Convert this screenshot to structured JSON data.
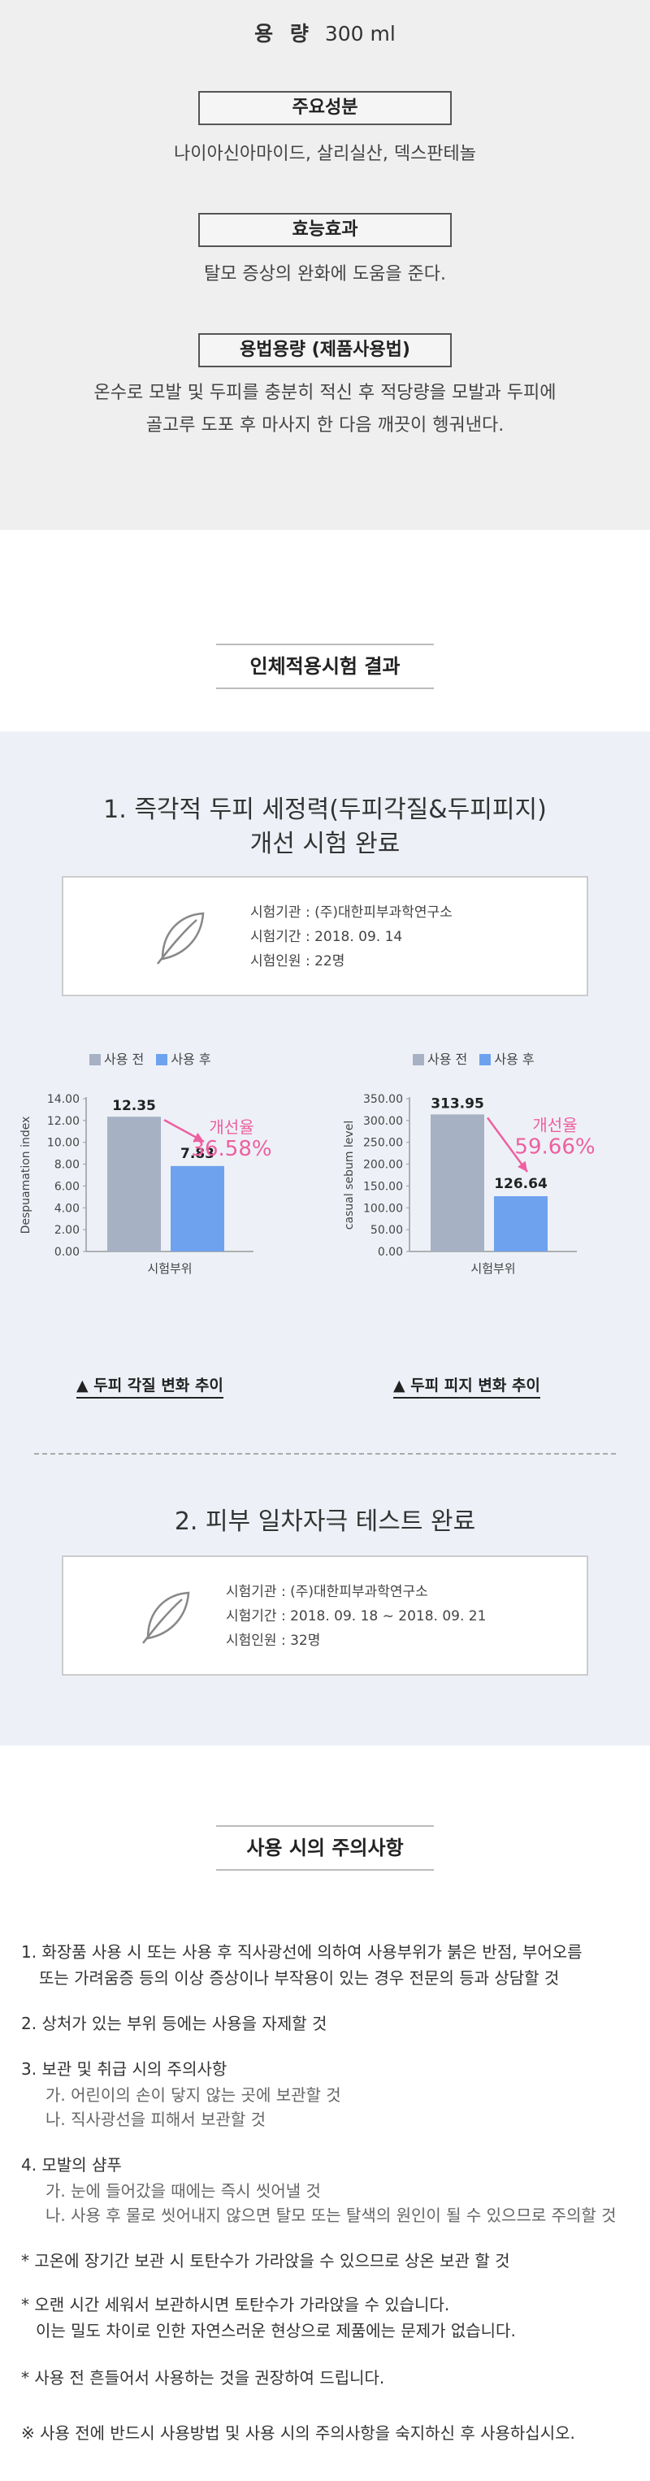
{
  "product": {
    "volume_key": "용 량",
    "volume_value": "300 ml",
    "ingredients_label": "주요성분",
    "ingredients": "나이아신아마이드, 살리실산, 덱스판테놀",
    "efficacy_label": "효능효과",
    "efficacy": "탈모 증상의 완화에 도움을 준다.",
    "usage_label": "용법용량 (제품사용법)",
    "usage_line1": "온수로 모발 및 두피를 충분히 적신 후 적당량을 모발과 두피에",
    "usage_line2": "골고루 도포 후 마사지 한 다음 깨끗이 헹궈낸다."
  },
  "tests": {
    "heading": "인체적용시험 결과",
    "test1": {
      "title_line1": "1. 즉각적 두피 세정력(두피각질&두피피지)",
      "title_line2": "개선 시험 완료",
      "org": "시험기관 : (주)대한피부과학연구소",
      "period": "시험기간 : 2018. 09. 14",
      "people": "시험인원 : 22명"
    },
    "test2": {
      "title": "2. 피부 일차자극 테스트 완료",
      "org": "시험기관 : (주)대한피부과학연구소",
      "period": "시험기간 : 2018. 09. 18 ~ 2018. 09. 21",
      "people": "시험인원 : 32명"
    },
    "legend_before": "사용 전",
    "legend_after": "사용 후",
    "improve_label": "개선율",
    "colors": {
      "before": "#a6b1c4",
      "after": "#6ea2ee",
      "improve": "#ee5fa0"
    }
  },
  "chart_data": [
    {
      "type": "bar",
      "categories": [
        "시험부위"
      ],
      "series": [
        {
          "name": "사용 전",
          "values": [
            12.35
          ]
        },
        {
          "name": "사용 후",
          "values": [
            7.83
          ]
        }
      ],
      "ylabel": "Despuamation index",
      "xlabel": "시험부위",
      "ylim": [
        0,
        14
      ],
      "yticks": [
        "0.00",
        "2.00",
        "4.00",
        "6.00",
        "8.00",
        "10.00",
        "12.00",
        "14.00"
      ],
      "data_labels": [
        "12.35",
        "7.83"
      ],
      "improvement": "36.58%",
      "caption": "▲ 두피 각질 변화 추이",
      "legend": "top"
    },
    {
      "type": "bar",
      "categories": [
        "시험부위"
      ],
      "series": [
        {
          "name": "사용 전",
          "values": [
            313.95
          ]
        },
        {
          "name": "사용 후",
          "values": [
            126.64
          ]
        }
      ],
      "ylabel": "casual sebum level",
      "xlabel": "시험부위",
      "ylim": [
        0,
        350
      ],
      "yticks": [
        "0.00",
        "50.00",
        "100.00",
        "150.00",
        "200.00",
        "250.00",
        "300.00",
        "350.00"
      ],
      "data_labels": [
        "313.95",
        "126.64"
      ],
      "improvement": "59.66%",
      "caption": "▲ 두피 피지 변화 추이",
      "legend": "top"
    }
  ],
  "cautions": {
    "heading": "사용 시의 주의사항",
    "item1_line1": "1. 화장품 사용 시 또는 사용 후 직사광선에 의하여 사용부위가 붉은 반점, 부어오름",
    "item1_line2": "또는 가려움증 등의 이상 증상이나 부작용이 있는 경우 전문의 등과 상담할 것",
    "item2": "2. 상처가 있는 부위 등에는 사용을 자제할 것",
    "item3": "3. 보관 및 취급 시의 주의사항",
    "item3_a": "가. 어린이의 손이 닿지 않는 곳에 보관할 것",
    "item3_b": "나. 직사광선을 피해서 보관할 것",
    "item4": "4. 모발의 샴푸",
    "item4_a": "가. 눈에 들어갔을 때에는 즉시 씻어낼 것",
    "item4_b": "나. 사용 후 물로 씻어내지 않으면 탈모 또는 탈색의 원인이 될 수 있으므로 주의할 것",
    "note1": "* 고온에 장기간 보관 시 토탄수가 가라앉을 수 있으므로 상온 보관 할 것",
    "note2_line1": "* 오랜 시간 세워서 보관하시면 토탄수가 가라앉을 수 있습니다.",
    "note2_line2": "이는 밀도 차이로 인한 자연스러운 현상으로 제품에는 문제가 없습니다.",
    "note3": "* 사용 전 흔들어서 사용하는 것을 권장하여 드립니다.",
    "final": "※ 사용 전에 반드시 사용방법 및 사용 시의 주의사항을 숙지하신 후 사용하십시오."
  }
}
